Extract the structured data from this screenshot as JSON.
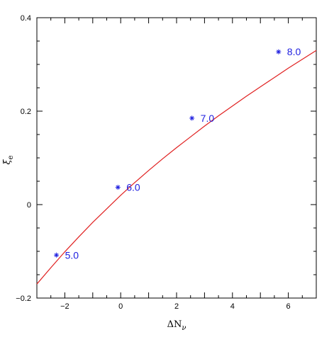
{
  "chart_data": {
    "type": "line",
    "title": "",
    "xlabel": "ΔN",
    "xlabel_subscript": "ν",
    "ylabel": "ξ",
    "ylabel_subscript": "e",
    "xlim": [
      -3,
      7
    ],
    "ylim": [
      -0.2,
      0.4
    ],
    "x_ticks": [
      -2,
      0,
      2,
      4,
      6
    ],
    "x_tick_labels": [
      "−2",
      "0",
      "2",
      "4",
      "6"
    ],
    "y_ticks": [
      -0.2,
      0,
      0.2,
      0.4
    ],
    "y_tick_labels": [
      "−0.2",
      "0",
      "0.2",
      "0.4"
    ],
    "grid": false,
    "series": [
      {
        "color": "#e02020",
        "x": [
          -3.0,
          -2.5,
          -2.0,
          -1.5,
          -1.0,
          -0.5,
          0.0,
          0.5,
          1.0,
          1.5,
          2.0,
          2.5,
          3.0,
          3.5,
          4.0,
          4.5,
          5.0,
          5.5,
          6.0,
          6.5,
          7.0
        ],
        "y": [
          -0.17,
          -0.135,
          -0.101,
          -0.069,
          -0.038,
          -0.009,
          0.02,
          0.047,
          0.073,
          0.098,
          0.122,
          0.145,
          0.168,
          0.19,
          0.211,
          0.232,
          0.252,
          0.272,
          0.292,
          0.311,
          0.33
        ]
      }
    ],
    "points": [
      {
        "x": -2.3,
        "y": -0.108,
        "label": "5.0"
      },
      {
        "x": -0.1,
        "y": 0.037,
        "label": "6.0"
      },
      {
        "x": 2.55,
        "y": 0.185,
        "label": "7.0"
      },
      {
        "x": 5.65,
        "y": 0.327,
        "label": "8.0"
      }
    ],
    "colors": {
      "curve": "#e02020",
      "points": "#2020e0",
      "axes": "#000000"
    }
  }
}
